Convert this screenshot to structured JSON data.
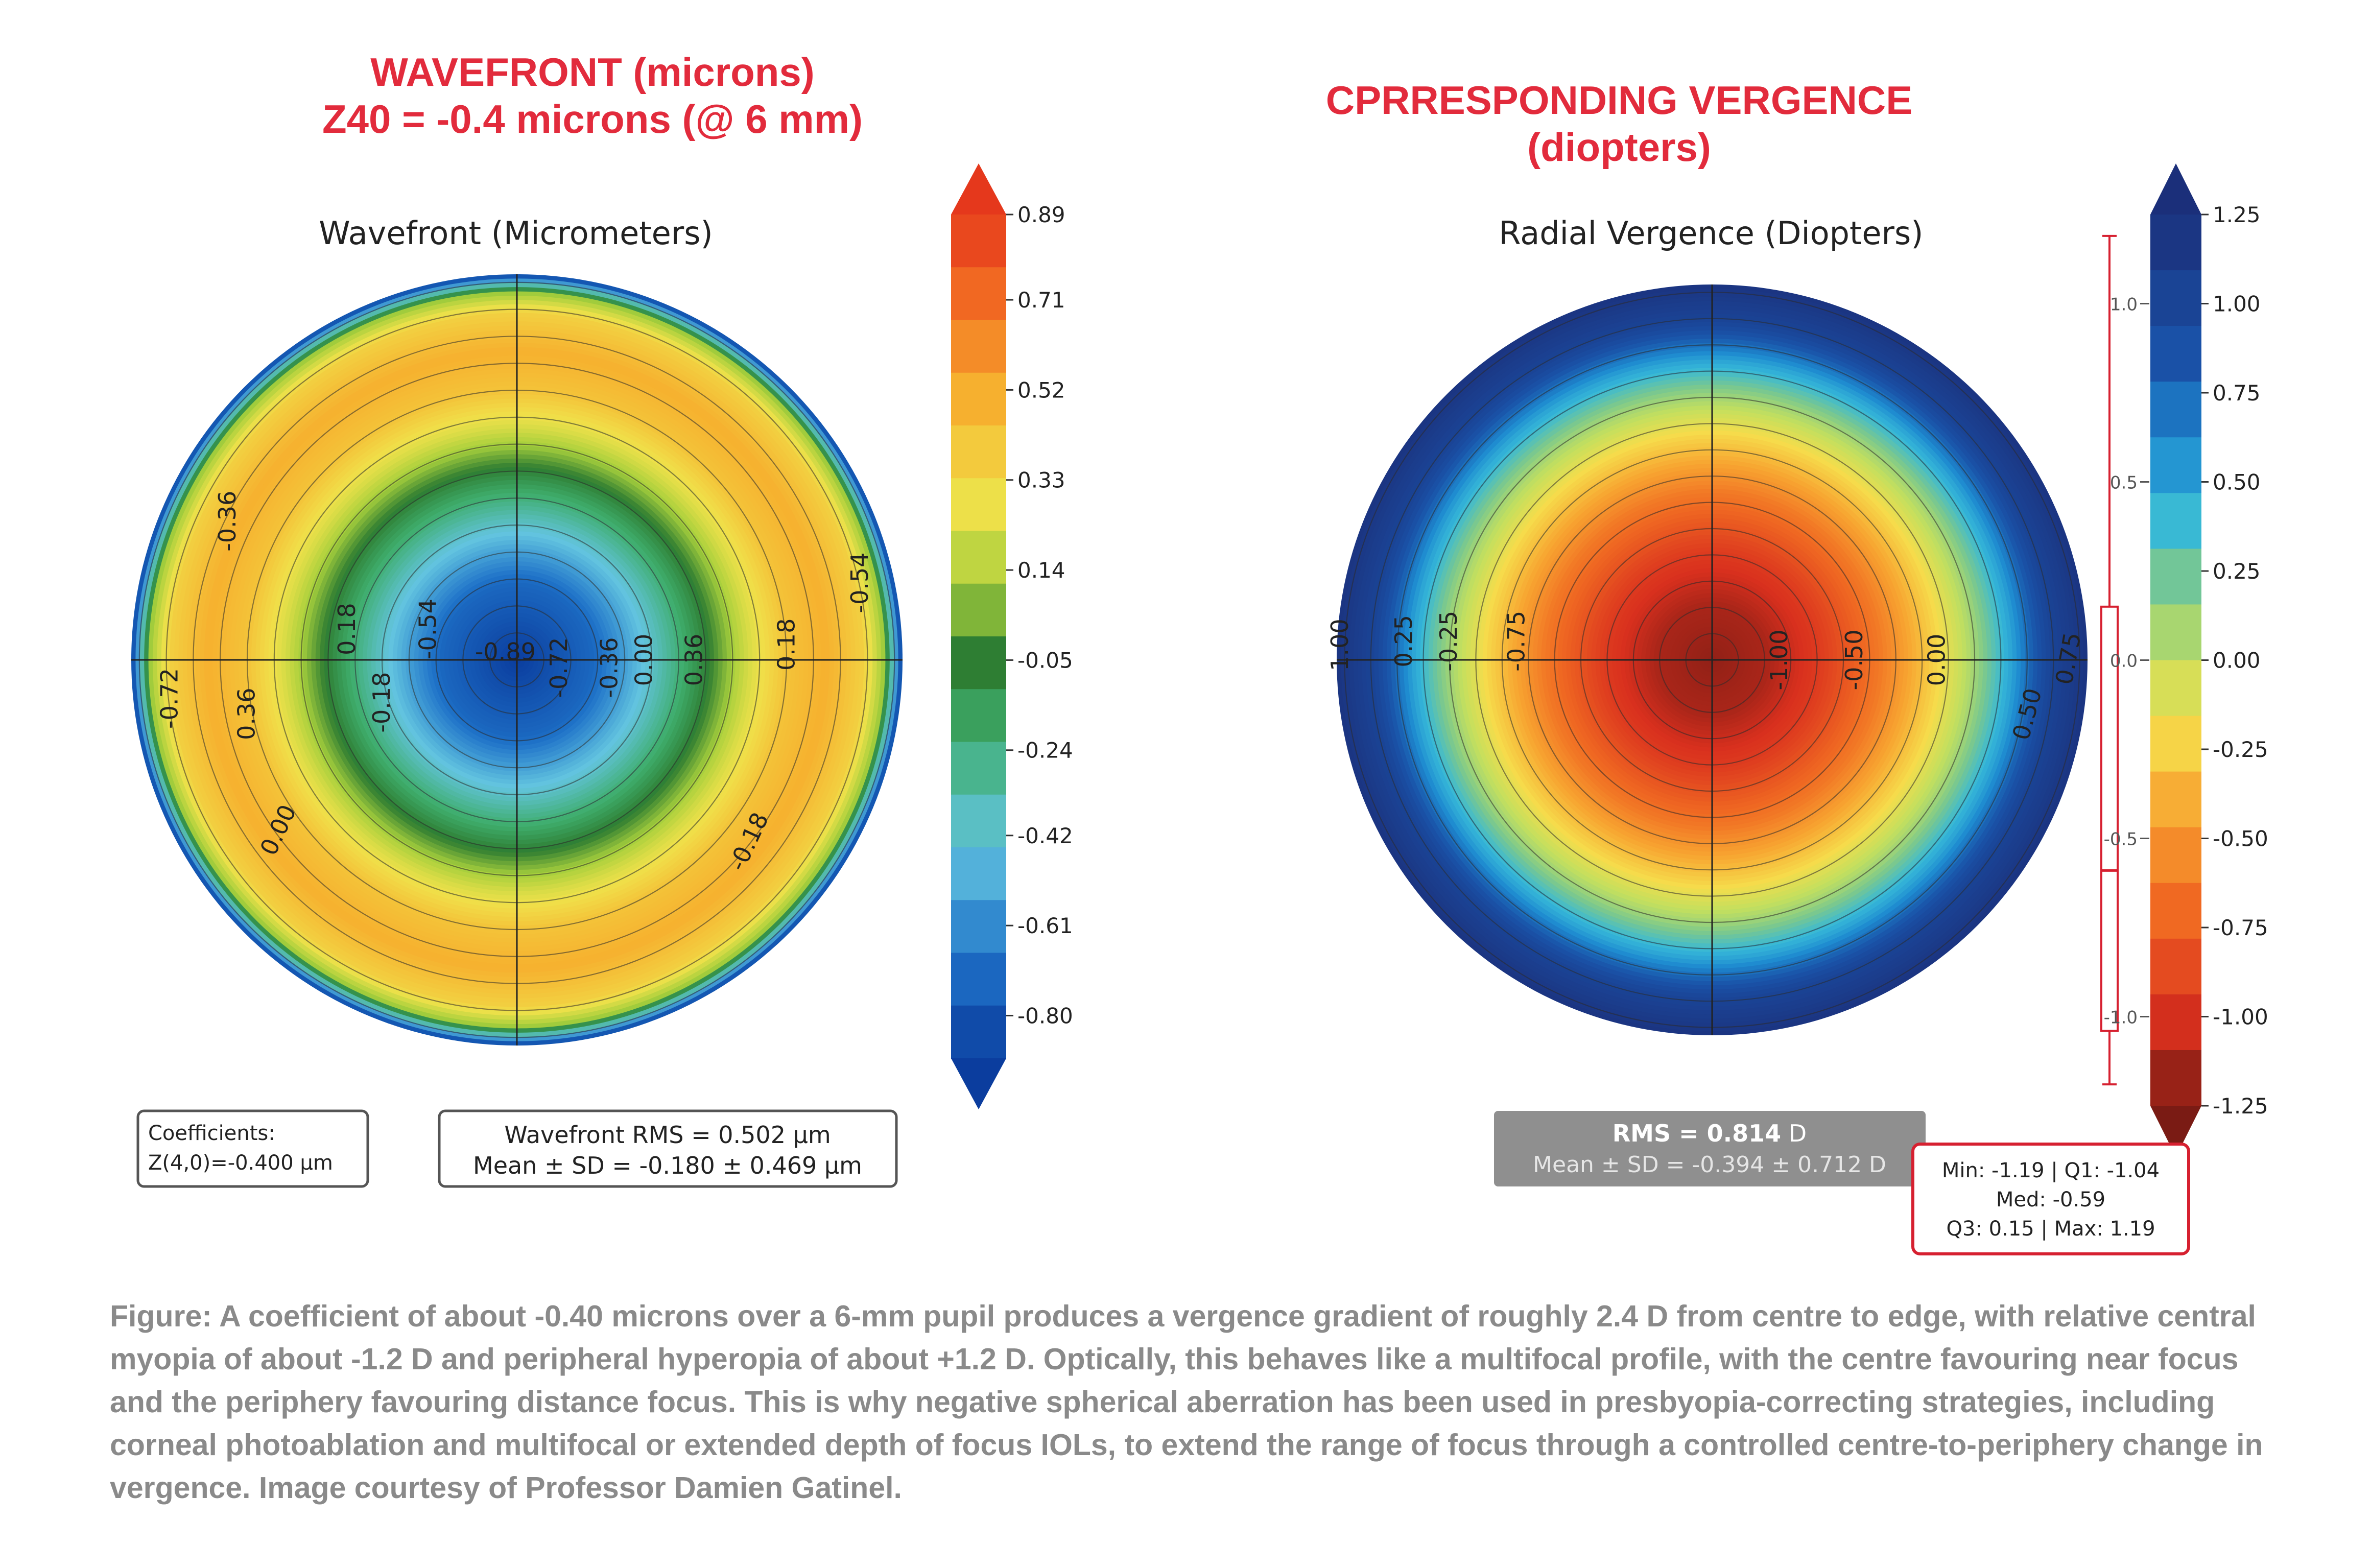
{
  "headers": {
    "left_line1": "WAVEFRONT (microns)",
    "left_line2": "Z40 = -0.4 microns (@ 6 mm)",
    "right": "CPRRESPONDING VERGENCE (diopters)"
  },
  "caption": "Figure: A coefficient of about -0.40 microns over a 6-mm pupil produces a vergence gradient of roughly 2.4 D from centre to edge, with relative central myopia of about -1.2 D and peripheral hyperopia of about +1.2 D. Optically, this behaves like a multifocal profile, with the centre favouring near focus and the periphery favouring distance focus. This is why negative spherical aberration has been used in presbyopia-correcting strategies, including corneal photoablation and multifocal or extended depth of focus IOLs, to extend the range of focus through a controlled centre-to-periphery change in vergence. Image courtesy of Professor Damien Gatinel.",
  "colors": {
    "header_red": "#e22b3c",
    "caption_gray": "#8a8a8a",
    "stats_box_red": "#d62030",
    "rms_box_gray": "#8f8f8f"
  },
  "chart_data": [
    {
      "type": "heatmap",
      "title": "Wavefront (Micrometers)",
      "map": "circular pupil, rotationally symmetric; value vs normalized radius rho (0 = centre, 1 = edge), Z(4,0) spherical aberration profile",
      "profile": {
        "rho": [
          0.0,
          0.2,
          0.35,
          0.5,
          0.6,
          0.7,
          0.8,
          0.9,
          0.95,
          1.0
        ],
        "values": [
          -0.89,
          -0.72,
          -0.4,
          -0.05,
          0.22,
          0.42,
          0.5,
          0.36,
          0.1,
          -0.9
        ]
      },
      "colorbar": {
        "ticks": [
          "0.89",
          "0.71",
          "0.52",
          "0.33",
          "0.14",
          "-0.05",
          "-0.24",
          "-0.42",
          "-0.61",
          "-0.80"
        ],
        "tick_values": [
          0.89,
          0.71,
          0.52,
          0.33,
          0.14,
          -0.05,
          -0.24,
          -0.42,
          -0.61,
          -0.8
        ],
        "range": [
          -0.89,
          0.89
        ],
        "extend": "both"
      },
      "contour_labels": [
        "-0.36",
        "0.18",
        "-0.54",
        "-0.89",
        "-0.72",
        "-0.36",
        "0.00",
        "0.36",
        "0.18",
        "-0.54",
        "0.36",
        "-0.18",
        "-0.72",
        "0.00",
        "-0.18"
      ],
      "coefficients_box": {
        "title": "Coefficients:",
        "value": "Z(4,0)=-0.400 µm"
      },
      "stats_box": {
        "line1": "Wavefront RMS = 0.502 µm",
        "line2": "Mean ± SD = -0.180 ± 0.469 µm"
      }
    },
    {
      "type": "heatmap",
      "title": "Radial Vergence (Diopters)",
      "map": "circular pupil, rotationally symmetric; vergence vs normalized radius rho",
      "profile": {
        "rho": [
          0.0,
          0.15,
          0.3,
          0.45,
          0.6,
          0.7,
          0.8,
          0.85,
          0.9,
          1.0
        ],
        "values": [
          -1.19,
          -1.12,
          -0.92,
          -0.62,
          -0.22,
          0.1,
          0.5,
          0.78,
          1.0,
          1.19
        ]
      },
      "colorbar": {
        "ticks": [
          "1.25",
          "1.00",
          "0.75",
          "0.50",
          "0.25",
          "0.00",
          "-0.25",
          "-0.50",
          "-0.75",
          "-1.00",
          "-1.25"
        ],
        "tick_values": [
          1.25,
          1.0,
          0.75,
          0.5,
          0.25,
          0.0,
          -0.25,
          -0.5,
          -0.75,
          -1.0,
          -1.25
        ],
        "range": [
          -1.25,
          1.25
        ],
        "extend": "both"
      },
      "contour_labels": [
        "1.00",
        "0.25",
        "-0.25",
        "-0.75",
        "-1.00",
        "-0.50",
        "0.00",
        "0.50",
        "0.75"
      ],
      "boxplot": {
        "min": -1.19,
        "q1": -1.04,
        "median": -0.59,
        "q3": 0.15,
        "max": 1.19,
        "axis_ticks": [
          "1.0",
          "0.5",
          "0.0",
          "-0.5",
          "-1.0"
        ],
        "axis_tick_values": [
          1.0,
          0.5,
          0.0,
          -0.5,
          -1.0
        ]
      },
      "rms_box": {
        "label": "RMS = 0.814",
        "unit": " D",
        "line2": "Mean ± SD = -0.394 ± 0.712 D"
      },
      "stats_box": {
        "line1": "Min: -1.19 | Q1: -1.04",
        "line2": "Med: -0.59",
        "line3": "Q3: 0.15 | Max: 1.19"
      }
    }
  ]
}
